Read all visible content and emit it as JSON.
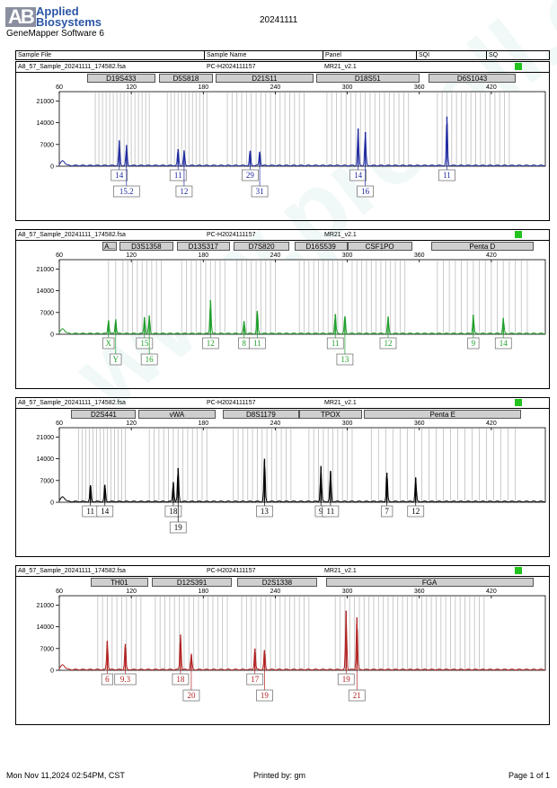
{
  "header": {
    "logo_text_1": "Applied",
    "logo_text_2": "Biosystems",
    "logo_mark": "AB",
    "software": "GeneMapper Software 6",
    "date": "20241111",
    "columns": [
      "Sample File",
      "Sample Name",
      "Panel",
      "SQI",
      "SQ"
    ]
  },
  "footer": {
    "timestamp": "Mon Nov 11,2024 02:54PM, CST",
    "printed_by": "Printed by: gm",
    "page": "Page 1 of 1"
  },
  "watermark": "www.protell.com.cn",
  "chart_data": [
    {
      "type": "line",
      "sample_file": "A8_57_Sample_20241111_174582.fsa",
      "sample_name": "PC-H2024111157",
      "panel": "MR21_v2.1",
      "color": "#1f2a9e",
      "xticks": [
        60,
        120,
        180,
        240,
        300,
        360,
        420
      ],
      "yticks": [
        0,
        7000,
        14000,
        21000
      ],
      "ylim": [
        0,
        24000
      ],
      "xlim": [
        60,
        465
      ],
      "markers": [
        {
          "name": "D19S433",
          "start": 83,
          "end": 140
        },
        {
          "name": "D5S818",
          "start": 143,
          "end": 188
        },
        {
          "name": "D21S11",
          "start": 190,
          "end": 272
        },
        {
          "name": "D18S51",
          "start": 274,
          "end": 360
        },
        {
          "name": "D6S1043",
          "start": 368,
          "end": 440
        }
      ],
      "peaks": [
        {
          "x": 110,
          "h": 8000
        },
        {
          "x": 116,
          "h": 6500
        },
        {
          "x": 159,
          "h": 5500
        },
        {
          "x": 164,
          "h": 4800
        },
        {
          "x": 219,
          "h": 5000
        },
        {
          "x": 227,
          "h": 4700
        },
        {
          "x": 309,
          "h": 12000
        },
        {
          "x": 315,
          "h": 11000
        },
        {
          "x": 383,
          "h": 16000
        }
      ],
      "alleles": [
        {
          "label": "14",
          "x": 110,
          "row": 1
        },
        {
          "label": "15.2",
          "x": 116,
          "row": 2
        },
        {
          "label": "11",
          "x": 159,
          "row": 1
        },
        {
          "label": "12",
          "x": 164,
          "row": 2
        },
        {
          "label": "29",
          "x": 219,
          "row": 1
        },
        {
          "label": "31",
          "x": 227,
          "row": 2
        },
        {
          "label": "14",
          "x": 309,
          "row": 1
        },
        {
          "label": "16",
          "x": 315,
          "row": 2
        },
        {
          "label": "11",
          "x": 383,
          "row": 1
        }
      ],
      "bins": [
        90,
        93,
        96,
        99,
        102,
        105,
        108,
        111,
        114,
        117,
        120,
        123,
        126,
        129,
        132,
        135,
        150,
        153,
        156,
        159,
        162,
        165,
        168,
        171,
        174,
        177,
        180,
        183,
        200,
        204,
        208,
        212,
        216,
        220,
        224,
        228,
        232,
        236,
        240,
        244,
        248,
        252,
        256,
        260,
        264,
        283,
        287,
        291,
        295,
        299,
        303,
        307,
        311,
        315,
        319,
        323,
        327,
        331,
        335,
        339,
        343,
        347,
        351,
        375,
        379,
        383,
        387,
        391,
        395,
        399,
        403,
        407,
        411,
        415,
        419,
        423,
        427,
        431,
        435
      ]
    },
    {
      "type": "line",
      "sample_file": "A8_57_Sample_20241111_174582.fsa",
      "sample_name": "PC-H2024111157",
      "panel": "MR21_v2.1",
      "color": "#1f9e2a",
      "xticks": [
        60,
        120,
        180,
        240,
        300,
        360,
        420
      ],
      "yticks": [
        0,
        7000,
        14000,
        21000
      ],
      "ylim": [
        0,
        24000
      ],
      "xlim": [
        60,
        465
      ],
      "markers": [
        {
          "name": "A...",
          "start": 96,
          "end": 108
        },
        {
          "name": "D3S1358",
          "start": 110,
          "end": 155
        },
        {
          "name": "D13S317",
          "start": 158,
          "end": 202
        },
        {
          "name": "D7S820",
          "start": 205,
          "end": 252
        },
        {
          "name": "D16S539",
          "start": 256,
          "end": 300
        },
        {
          "name": "CSF1PO",
          "start": 300,
          "end": 354
        },
        {
          "name": "Penta D",
          "start": 370,
          "end": 455
        }
      ],
      "peaks": [
        {
          "x": 101,
          "h": 4500
        },
        {
          "x": 107,
          "h": 4800
        },
        {
          "x": 131,
          "h": 5500
        },
        {
          "x": 135,
          "h": 5800
        },
        {
          "x": 186,
          "h": 11000
        },
        {
          "x": 214,
          "h": 4000
        },
        {
          "x": 225,
          "h": 7500
        },
        {
          "x": 290,
          "h": 6500
        },
        {
          "x": 298,
          "h": 5800
        },
        {
          "x": 334,
          "h": 5400
        },
        {
          "x": 405,
          "h": 6200
        },
        {
          "x": 430,
          "h": 5100
        }
      ],
      "alleles": [
        {
          "label": "X",
          "x": 101,
          "row": 1
        },
        {
          "label": "Y",
          "x": 107,
          "row": 2
        },
        {
          "label": "15",
          "x": 131,
          "row": 1
        },
        {
          "label": "16",
          "x": 135,
          "row": 2
        },
        {
          "label": "12",
          "x": 186,
          "row": 1
        },
        {
          "label": "8",
          "x": 214,
          "row": 1
        },
        {
          "label": "11",
          "x": 225,
          "row": 1
        },
        {
          "label": "11",
          "x": 290,
          "row": 1
        },
        {
          "label": "13",
          "x": 298,
          "row": 2
        },
        {
          "label": "12",
          "x": 334,
          "row": 1
        },
        {
          "label": "9",
          "x": 405,
          "row": 1
        },
        {
          "label": "14",
          "x": 430,
          "row": 1
        }
      ],
      "bins": [
        101,
        107,
        113,
        117,
        121,
        125,
        129,
        133,
        137,
        141,
        145,
        162,
        166,
        170,
        174,
        178,
        182,
        186,
        190,
        194,
        198,
        208,
        212,
        216,
        220,
        224,
        228,
        232,
        236,
        240,
        260,
        264,
        268,
        272,
        276,
        280,
        284,
        288,
        292,
        296,
        304,
        308,
        312,
        316,
        320,
        324,
        328,
        332,
        336,
        340,
        344,
        348,
        375,
        380,
        385,
        390,
        395,
        400,
        405,
        410,
        415,
        420,
        425,
        430,
        435,
        440,
        445,
        450
      ]
    },
    {
      "type": "line",
      "sample_file": "A8_57_Sample_20241111_174582.fsa",
      "sample_name": "PC-H2024111157",
      "panel": "MR21_v2.1",
      "color": "#000000",
      "xticks": [
        60,
        120,
        180,
        240,
        300,
        360,
        420
      ],
      "yticks": [
        0,
        7000,
        14000,
        21000
      ],
      "ylim": [
        0,
        24000
      ],
      "xlim": [
        60,
        465
      ],
      "markers": [
        {
          "name": "D2S441",
          "start": 70,
          "end": 124
        },
        {
          "name": "vWA",
          "start": 126,
          "end": 190
        },
        {
          "name": "D8S1179",
          "start": 196,
          "end": 260
        },
        {
          "name": "TPOX",
          "start": 260,
          "end": 312
        },
        {
          "name": "Penta E",
          "start": 314,
          "end": 445
        }
      ],
      "peaks": [
        {
          "x": 86,
          "h": 5500
        },
        {
          "x": 98,
          "h": 5600
        },
        {
          "x": 155,
          "h": 6500
        },
        {
          "x": 159,
          "h": 11000
        },
        {
          "x": 231,
          "h": 14000
        },
        {
          "x": 278,
          "h": 11500
        },
        {
          "x": 286,
          "h": 10000
        },
        {
          "x": 333,
          "h": 9500
        },
        {
          "x": 357,
          "h": 7800
        }
      ],
      "alleles": [
        {
          "label": "11",
          "x": 86,
          "row": 1
        },
        {
          "label": "14",
          "x": 98,
          "row": 1
        },
        {
          "label": "18",
          "x": 155,
          "row": 1
        },
        {
          "label": "19",
          "x": 159,
          "row": 2
        },
        {
          "label": "13",
          "x": 231,
          "row": 1
        },
        {
          "label": "9",
          "x": 278,
          "row": 1
        },
        {
          "label": "11",
          "x": 286,
          "row": 1
        },
        {
          "label": "7",
          "x": 333,
          "row": 1
        },
        {
          "label": "12",
          "x": 357,
          "row": 1
        }
      ],
      "bins": [
        76,
        79,
        82,
        85,
        88,
        91,
        94,
        97,
        100,
        103,
        106,
        109,
        112,
        115,
        135,
        139,
        143,
        147,
        151,
        155,
        159,
        163,
        167,
        171,
        175,
        179,
        183,
        205,
        209,
        213,
        217,
        221,
        225,
        229,
        233,
        237,
        241,
        245,
        249,
        253,
        268,
        272,
        276,
        280,
        284,
        288,
        292,
        296,
        300,
        304,
        320,
        326,
        332,
        338,
        344,
        350,
        356,
        362,
        368,
        374,
        380,
        386,
        392,
        398,
        404,
        410,
        416,
        422,
        428,
        434,
        440
      ]
    },
    {
      "type": "line",
      "sample_file": "A8_57_Sample_20241111_174582.fsa",
      "sample_name": "PC-H2024111157",
      "panel": "MR21_v2.1",
      "color": "#b22222",
      "xticks": [
        60,
        120,
        180,
        240,
        300,
        360,
        420
      ],
      "yticks": [
        0,
        7000,
        14000,
        21000
      ],
      "ylim": [
        0,
        24000
      ],
      "xlim": [
        60,
        465
      ],
      "markers": [
        {
          "name": "TH01",
          "start": 86,
          "end": 134
        },
        {
          "name": "D12S391",
          "start": 137,
          "end": 204
        },
        {
          "name": "D2S1338",
          "start": 208,
          "end": 275
        },
        {
          "name": "FGA",
          "start": 282,
          "end": 455
        }
      ],
      "peaks": [
        {
          "x": 100,
          "h": 9500
        },
        {
          "x": 115,
          "h": 8500
        },
        {
          "x": 161,
          "h": 11500
        },
        {
          "x": 170,
          "h": 5000
        },
        {
          "x": 223,
          "h": 7000
        },
        {
          "x": 231,
          "h": 6500
        },
        {
          "x": 299,
          "h": 19000
        },
        {
          "x": 308,
          "h": 17000
        }
      ],
      "alleles": [
        {
          "label": "6",
          "x": 100,
          "row": 1
        },
        {
          "label": "9.3",
          "x": 115,
          "row": 1
        },
        {
          "label": "18",
          "x": 161,
          "row": 1
        },
        {
          "label": "20",
          "x": 170,
          "row": 2
        },
        {
          "label": "17",
          "x": 223,
          "row": 1
        },
        {
          "label": "19",
          "x": 231,
          "row": 2
        },
        {
          "label": "19",
          "x": 299,
          "row": 1
        },
        {
          "label": "21",
          "x": 308,
          "row": 2
        }
      ],
      "bins": [
        92,
        96,
        100,
        104,
        108,
        112,
        116,
        120,
        124,
        128,
        140,
        144,
        148,
        152,
        156,
        160,
        164,
        168,
        172,
        176,
        180,
        184,
        188,
        192,
        196,
        200,
        212,
        216,
        220,
        224,
        228,
        232,
        236,
        240,
        244,
        248,
        252,
        256,
        260,
        264,
        268,
        290,
        294,
        298,
        302,
        306,
        310,
        314,
        318,
        322,
        326,
        330,
        334,
        338,
        342,
        346,
        350,
        354,
        358,
        362,
        366,
        370,
        374,
        378,
        382,
        386,
        390,
        394,
        398,
        402,
        406,
        410,
        414
      ]
    }
  ]
}
